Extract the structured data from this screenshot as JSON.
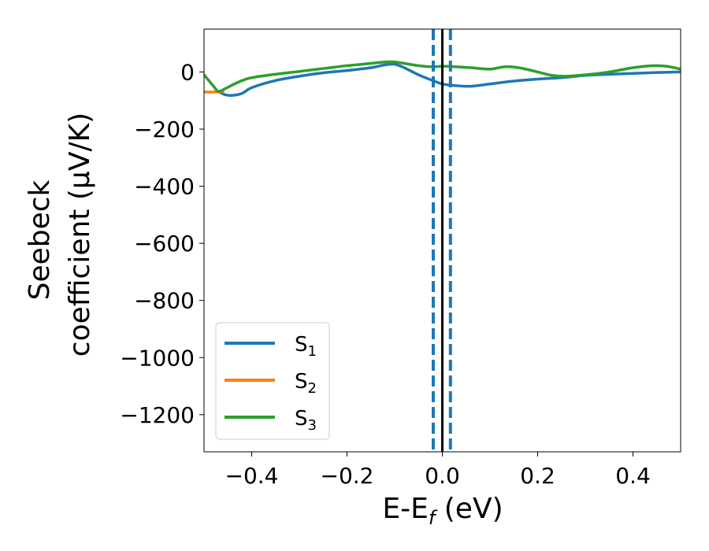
{
  "chart_data": {
    "type": "line",
    "title": "",
    "xlabel": {
      "main": "E-E",
      "sub": "f",
      "unit": " (eV)"
    },
    "ylabel": {
      "line1": "Seebeck",
      "line2": "coefficient  (μV/K)"
    },
    "xlim": [
      -0.5,
      0.5
    ],
    "ylim": [
      -1330,
      150
    ],
    "xticks": [
      -0.4,
      -0.2,
      0.0,
      0.2,
      0.4
    ],
    "xtick_labels": [
      "−0.4",
      "−0.2",
      "0.0",
      "0.2",
      "0.4"
    ],
    "yticks": [
      0,
      -200,
      -400,
      -600,
      -800,
      -1000,
      -1200
    ],
    "ytick_labels": [
      "0",
      "−200",
      "−400",
      "−600",
      "−800",
      "−1000",
      "−1200"
    ],
    "grid": false,
    "legend_position": "lower-left",
    "vertical_lines": [
      {
        "x": -0.019,
        "style": "dashed",
        "color": "#1f77b4"
      },
      {
        "x": 0.0,
        "style": "solid",
        "color": "#000000"
      },
      {
        "x": 0.017,
        "style": "dashed",
        "color": "#1f77b4"
      }
    ],
    "series": [
      {
        "name": "S",
        "sub": "1",
        "color": "#1f77b4",
        "x": [
          -0.47,
          -0.455,
          -0.44,
          -0.42,
          -0.4,
          -0.35,
          -0.3,
          -0.25,
          -0.2,
          -0.15,
          -0.12,
          -0.1,
          -0.08,
          -0.05,
          -0.02,
          0.0,
          0.03,
          0.06,
          0.1,
          0.15,
          0.2,
          0.25,
          0.3,
          0.35,
          0.4,
          0.45,
          0.5
        ],
        "y": [
          -68,
          -80,
          -82,
          -75,
          -55,
          -30,
          -15,
          -3,
          5,
          15,
          25,
          27,
          15,
          -10,
          -30,
          -42,
          -48,
          -50,
          -42,
          -32,
          -25,
          -20,
          -12,
          -8,
          -5,
          -2,
          0
        ]
      },
      {
        "name": "S",
        "sub": "2",
        "color": "#ff7f0e",
        "x": [
          -0.5,
          -0.48,
          -0.465,
          -0.46
        ],
        "y": [
          -70,
          -70,
          -69,
          -68
        ]
      },
      {
        "name": "S",
        "sub": "3",
        "color": "#2ca02c",
        "x": [
          -0.5,
          -0.49,
          -0.48,
          -0.47,
          -0.455,
          -0.44,
          -0.42,
          -0.4,
          -0.35,
          -0.3,
          -0.25,
          -0.2,
          -0.15,
          -0.12,
          -0.1,
          -0.08,
          -0.05,
          -0.02,
          0.0,
          0.03,
          0.06,
          0.1,
          0.13,
          0.16,
          0.2,
          0.23,
          0.26,
          0.3,
          0.35,
          0.4,
          0.44,
          0.47,
          0.5
        ],
        "y": [
          -10,
          -30,
          -50,
          -68,
          -58,
          -45,
          -30,
          -20,
          -8,
          2,
          12,
          22,
          30,
          35,
          35,
          30,
          22,
          18,
          20,
          18,
          15,
          10,
          18,
          15,
          0,
          -12,
          -15,
          -10,
          0,
          15,
          22,
          20,
          10
        ]
      }
    ]
  }
}
